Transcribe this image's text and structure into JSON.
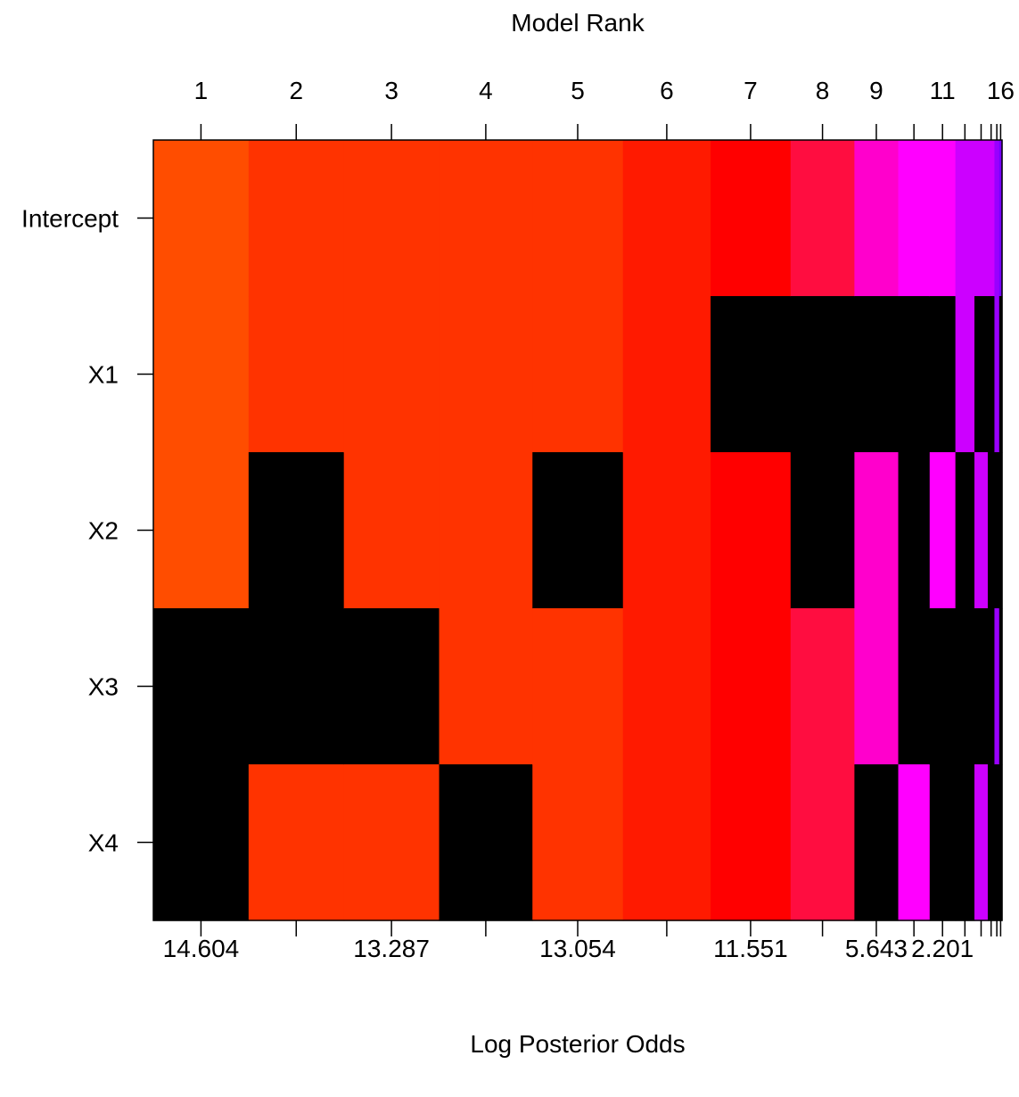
{
  "chart_data": {
    "type": "heatmap",
    "title": "Model Rank",
    "xlabel": "Log Posterior Odds",
    "ylabel": "",
    "rows": [
      "Intercept",
      "X1",
      "X2",
      "X3",
      "X4"
    ],
    "top_tick_labels": [
      "1",
      "2",
      "3",
      "4",
      "5",
      "6",
      "7",
      "8",
      "9",
      "11",
      "16"
    ],
    "bottom_tick_labels": [
      "14.604",
      "13.287",
      "13.054",
      "11.551",
      "5.643",
      "2.201"
    ],
    "empty_color": "#000000",
    "models": [
      {
        "rank": 1,
        "width": 1.0,
        "color": "#FF4D00",
        "included": [
          true,
          true,
          true,
          false,
          false
        ]
      },
      {
        "rank": 2,
        "width": 1.0,
        "color": "#FF3300",
        "included": [
          true,
          true,
          false,
          false,
          true
        ]
      },
      {
        "rank": 3,
        "width": 1.0,
        "color": "#FF3300",
        "included": [
          true,
          true,
          true,
          false,
          true
        ]
      },
      {
        "rank": 4,
        "width": 0.98,
        "color": "#FF3300",
        "included": [
          true,
          true,
          true,
          true,
          false
        ]
      },
      {
        "rank": 5,
        "width": 0.95,
        "color": "#FF3300",
        "included": [
          true,
          true,
          false,
          true,
          true
        ]
      },
      {
        "rank": 6,
        "width": 0.92,
        "color": "#FF1A00",
        "included": [
          true,
          true,
          true,
          true,
          true
        ]
      },
      {
        "rank": 7,
        "width": 0.84,
        "color": "#FF0000",
        "included": [
          true,
          false,
          true,
          true,
          true
        ]
      },
      {
        "rank": 8,
        "width": 0.67,
        "color": "#FF0D40",
        "included": [
          true,
          false,
          false,
          true,
          true
        ]
      },
      {
        "rank": 9,
        "width": 0.46,
        "color": "#FF00CC",
        "included": [
          true,
          false,
          true,
          true,
          false
        ]
      },
      {
        "rank": 10,
        "width": 0.33,
        "color": "#FF00FF",
        "included": [
          true,
          false,
          false,
          false,
          true
        ]
      },
      {
        "rank": 11,
        "width": 0.27,
        "color": "#FF00FF",
        "included": [
          true,
          false,
          true,
          false,
          false
        ]
      },
      {
        "rank": 12,
        "width": 0.2,
        "color": "#CC00FF",
        "included": [
          true,
          true,
          false,
          false,
          false
        ]
      },
      {
        "rank": 13,
        "width": 0.14,
        "color": "#CC00FF",
        "included": [
          true,
          false,
          true,
          false,
          true
        ]
      },
      {
        "rank": 14,
        "width": 0.07,
        "color": "#CC00FF",
        "included": [
          true,
          false,
          false,
          false,
          false
        ]
      },
      {
        "rank": 15,
        "width": 0.05,
        "color": "#9900FF",
        "included": [
          true,
          true,
          false,
          true,
          false
        ]
      },
      {
        "rank": 16,
        "width": 0.03,
        "color": "#7700FF",
        "included": [
          true,
          false,
          false,
          false,
          false
        ]
      }
    ]
  }
}
